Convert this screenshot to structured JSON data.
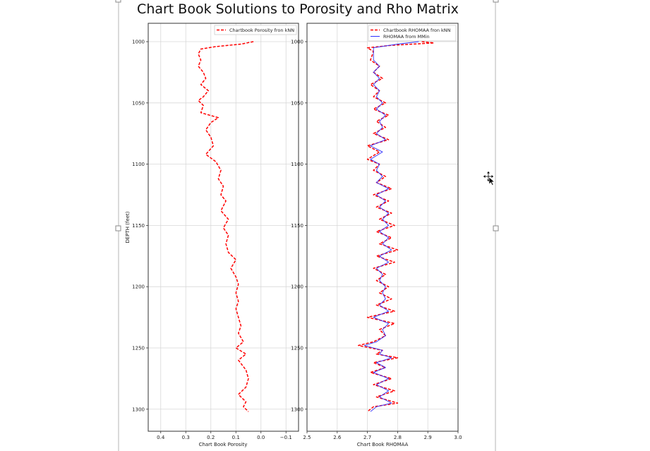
{
  "window": {
    "move_cursor_icon": "move-cursor-icon"
  },
  "figure_title": "Chart Book Solutions to Porosity and Rho Matrix",
  "colors": {
    "knn": "#ff0000",
    "mmin": "#3030ff",
    "grid": "#d8d8d8"
  },
  "chart_data": [
    {
      "type": "line",
      "xlabel": "Chart Book Porosity",
      "ylabel": "DEPTH (feet)",
      "xlim": [
        0.45,
        -0.15
      ],
      "ylim": [
        1318,
        985
      ],
      "xticks": [
        "0.4",
        "0.3",
        "0.2",
        "0.1",
        "0.0",
        "−0.1"
      ],
      "xtick_values": [
        0.4,
        0.3,
        0.2,
        0.1,
        0.0,
        -0.1
      ],
      "yticks": [
        "1000",
        "1050",
        "1100",
        "1150",
        "1200",
        "1250",
        "1300"
      ],
      "ytick_values": [
        1000,
        1050,
        1100,
        1150,
        1200,
        1250,
        1300
      ],
      "grid": true,
      "legend_position": "top-right",
      "series": [
        {
          "name": "Chartbook Porosity fron kNN",
          "style": "dashed",
          "color": "#ff0000",
          "points": [
            [
              0.03,
              1000
            ],
            [
              0.08,
              1002
            ],
            [
              0.18,
              1004
            ],
            [
              0.24,
              1006
            ],
            [
              0.25,
              1010
            ],
            [
              0.24,
              1015
            ],
            [
              0.25,
              1020
            ],
            [
              0.23,
              1025
            ],
            [
              0.22,
              1030
            ],
            [
              0.24,
              1035
            ],
            [
              0.21,
              1040
            ],
            [
              0.23,
              1045
            ],
            [
              0.25,
              1048
            ],
            [
              0.23,
              1052
            ],
            [
              0.24,
              1058
            ],
            [
              0.17,
              1062
            ],
            [
              0.2,
              1066
            ],
            [
              0.22,
              1072
            ],
            [
              0.2,
              1078
            ],
            [
              0.19,
              1085
            ],
            [
              0.22,
              1092
            ],
            [
              0.18,
              1098
            ],
            [
              0.16,
              1105
            ],
            [
              0.17,
              1112
            ],
            [
              0.15,
              1118
            ],
            [
              0.16,
              1125
            ],
            [
              0.14,
              1130
            ],
            [
              0.16,
              1138
            ],
            [
              0.13,
              1145
            ],
            [
              0.15,
              1152
            ],
            [
              0.13,
              1158
            ],
            [
              0.14,
              1165
            ],
            [
              0.13,
              1172
            ],
            [
              0.1,
              1178
            ],
            [
              0.12,
              1185
            ],
            [
              0.1,
              1192
            ],
            [
              0.09,
              1198
            ],
            [
              0.1,
              1205
            ],
            [
              0.09,
              1212
            ],
            [
              0.1,
              1218
            ],
            [
              0.09,
              1225
            ],
            [
              0.08,
              1232
            ],
            [
              0.09,
              1238
            ],
            [
              0.07,
              1245
            ],
            [
              0.1,
              1250
            ],
            [
              0.06,
              1255
            ],
            [
              0.09,
              1260
            ],
            [
              0.06,
              1268
            ],
            [
              0.05,
              1275
            ],
            [
              0.06,
              1282
            ],
            [
              0.09,
              1288
            ],
            [
              0.06,
              1294
            ],
            [
              0.07,
              1298
            ],
            [
              0.05,
              1302
            ]
          ]
        }
      ]
    },
    {
      "type": "line",
      "xlabel": "Chart Book RHOMAA",
      "xlim": [
        2.5,
        3.0
      ],
      "ylim": [
        1318,
        985
      ],
      "xticks": [
        "2.5",
        "2.6",
        "2.7",
        "2.8",
        "2.9",
        "3.0"
      ],
      "xtick_values": [
        2.5,
        2.6,
        2.7,
        2.8,
        2.9,
        3.0
      ],
      "yticks": [
        "1000",
        "1050",
        "1100",
        "1150",
        "1200",
        "1250",
        "1300"
      ],
      "ytick_values": [
        1000,
        1050,
        1100,
        1150,
        1200,
        1250,
        1300
      ],
      "grid": true,
      "legend_position": "top-right",
      "series": [
        {
          "name": "Chartbook RHOMAA fron kNN",
          "style": "dashed",
          "color": "#ff0000",
          "points": [
            [
              2.88,
              1000
            ],
            [
              2.92,
              1001
            ],
            [
              2.78,
              1003
            ],
            [
              2.7,
              1005
            ],
            [
              2.72,
              1008
            ],
            [
              2.71,
              1015
            ],
            [
              2.74,
              1020
            ],
            [
              2.72,
              1025
            ],
            [
              2.75,
              1030
            ],
            [
              2.71,
              1035
            ],
            [
              2.74,
              1040
            ],
            [
              2.72,
              1045
            ],
            [
              2.76,
              1050
            ],
            [
              2.72,
              1055
            ],
            [
              2.77,
              1060
            ],
            [
              2.73,
              1065
            ],
            [
              2.76,
              1070
            ],
            [
              2.72,
              1075
            ],
            [
              2.77,
              1080
            ],
            [
              2.7,
              1085
            ],
            [
              2.74,
              1090
            ],
            [
              2.7,
              1096
            ],
            [
              2.74,
              1100
            ],
            [
              2.72,
              1105
            ],
            [
              2.76,
              1110
            ],
            [
              2.73,
              1115
            ],
            [
              2.78,
              1120
            ],
            [
              2.72,
              1125
            ],
            [
              2.77,
              1130
            ],
            [
              2.73,
              1135
            ],
            [
              2.78,
              1140
            ],
            [
              2.74,
              1145
            ],
            [
              2.79,
              1150
            ],
            [
              2.73,
              1155
            ],
            [
              2.78,
              1160
            ],
            [
              2.74,
              1165
            ],
            [
              2.8,
              1170
            ],
            [
              2.73,
              1175
            ],
            [
              2.79,
              1180
            ],
            [
              2.72,
              1185
            ],
            [
              2.76,
              1190
            ],
            [
              2.73,
              1195
            ],
            [
              2.77,
              1200
            ],
            [
              2.74,
              1205
            ],
            [
              2.78,
              1210
            ],
            [
              2.73,
              1215
            ],
            [
              2.79,
              1220
            ],
            [
              2.7,
              1225
            ],
            [
              2.79,
              1230
            ],
            [
              2.74,
              1235
            ],
            [
              2.76,
              1240
            ],
            [
              2.72,
              1245
            ],
            [
              2.67,
              1248
            ],
            [
              2.75,
              1252
            ],
            [
              2.73,
              1255
            ],
            [
              2.8,
              1258
            ],
            [
              2.72,
              1262
            ],
            [
              2.76,
              1266
            ],
            [
              2.71,
              1270
            ],
            [
              2.78,
              1275
            ],
            [
              2.72,
              1280
            ],
            [
              2.79,
              1285
            ],
            [
              2.73,
              1290
            ],
            [
              2.8,
              1295
            ],
            [
              2.72,
              1298
            ],
            [
              2.7,
              1302
            ]
          ]
        },
        {
          "name": "RHOMAA from MMin",
          "style": "solid",
          "color": "#3030ff",
          "points": [
            [
              2.87,
              1000
            ],
            [
              2.8,
              1002
            ],
            [
              2.72,
              1005
            ],
            [
              2.72,
              1008
            ],
            [
              2.72,
              1015
            ],
            [
              2.74,
              1020
            ],
            [
              2.72,
              1025
            ],
            [
              2.74,
              1030
            ],
            [
              2.72,
              1035
            ],
            [
              2.74,
              1040
            ],
            [
              2.73,
              1045
            ],
            [
              2.75,
              1050
            ],
            [
              2.73,
              1055
            ],
            [
              2.76,
              1060
            ],
            [
              2.74,
              1065
            ],
            [
              2.75,
              1070
            ],
            [
              2.73,
              1075
            ],
            [
              2.76,
              1080
            ],
            [
              2.71,
              1085
            ],
            [
              2.75,
              1090
            ],
            [
              2.71,
              1096
            ],
            [
              2.74,
              1100
            ],
            [
              2.73,
              1105
            ],
            [
              2.75,
              1110
            ],
            [
              2.73,
              1115
            ],
            [
              2.77,
              1120
            ],
            [
              2.73,
              1125
            ],
            [
              2.76,
              1130
            ],
            [
              2.74,
              1135
            ],
            [
              2.77,
              1140
            ],
            [
              2.75,
              1145
            ],
            [
              2.77,
              1150
            ],
            [
              2.74,
              1155
            ],
            [
              2.77,
              1160
            ],
            [
              2.75,
              1165
            ],
            [
              2.78,
              1170
            ],
            [
              2.74,
              1175
            ],
            [
              2.77,
              1180
            ],
            [
              2.73,
              1185
            ],
            [
              2.75,
              1190
            ],
            [
              2.74,
              1195
            ],
            [
              2.76,
              1200
            ],
            [
              2.75,
              1205
            ],
            [
              2.76,
              1210
            ],
            [
              2.74,
              1215
            ],
            [
              2.77,
              1220
            ],
            [
              2.72,
              1225
            ],
            [
              2.77,
              1230
            ],
            [
              2.75,
              1235
            ],
            [
              2.76,
              1240
            ],
            [
              2.73,
              1245
            ],
            [
              2.69,
              1248
            ],
            [
              2.75,
              1252
            ],
            [
              2.74,
              1255
            ],
            [
              2.78,
              1258
            ],
            [
              2.73,
              1262
            ],
            [
              2.76,
              1266
            ],
            [
              2.72,
              1270
            ],
            [
              2.77,
              1275
            ],
            [
              2.73,
              1280
            ],
            [
              2.77,
              1285
            ],
            [
              2.74,
              1290
            ],
            [
              2.78,
              1295
            ],
            [
              2.73,
              1298
            ],
            [
              2.71,
              1302
            ]
          ]
        }
      ]
    }
  ]
}
